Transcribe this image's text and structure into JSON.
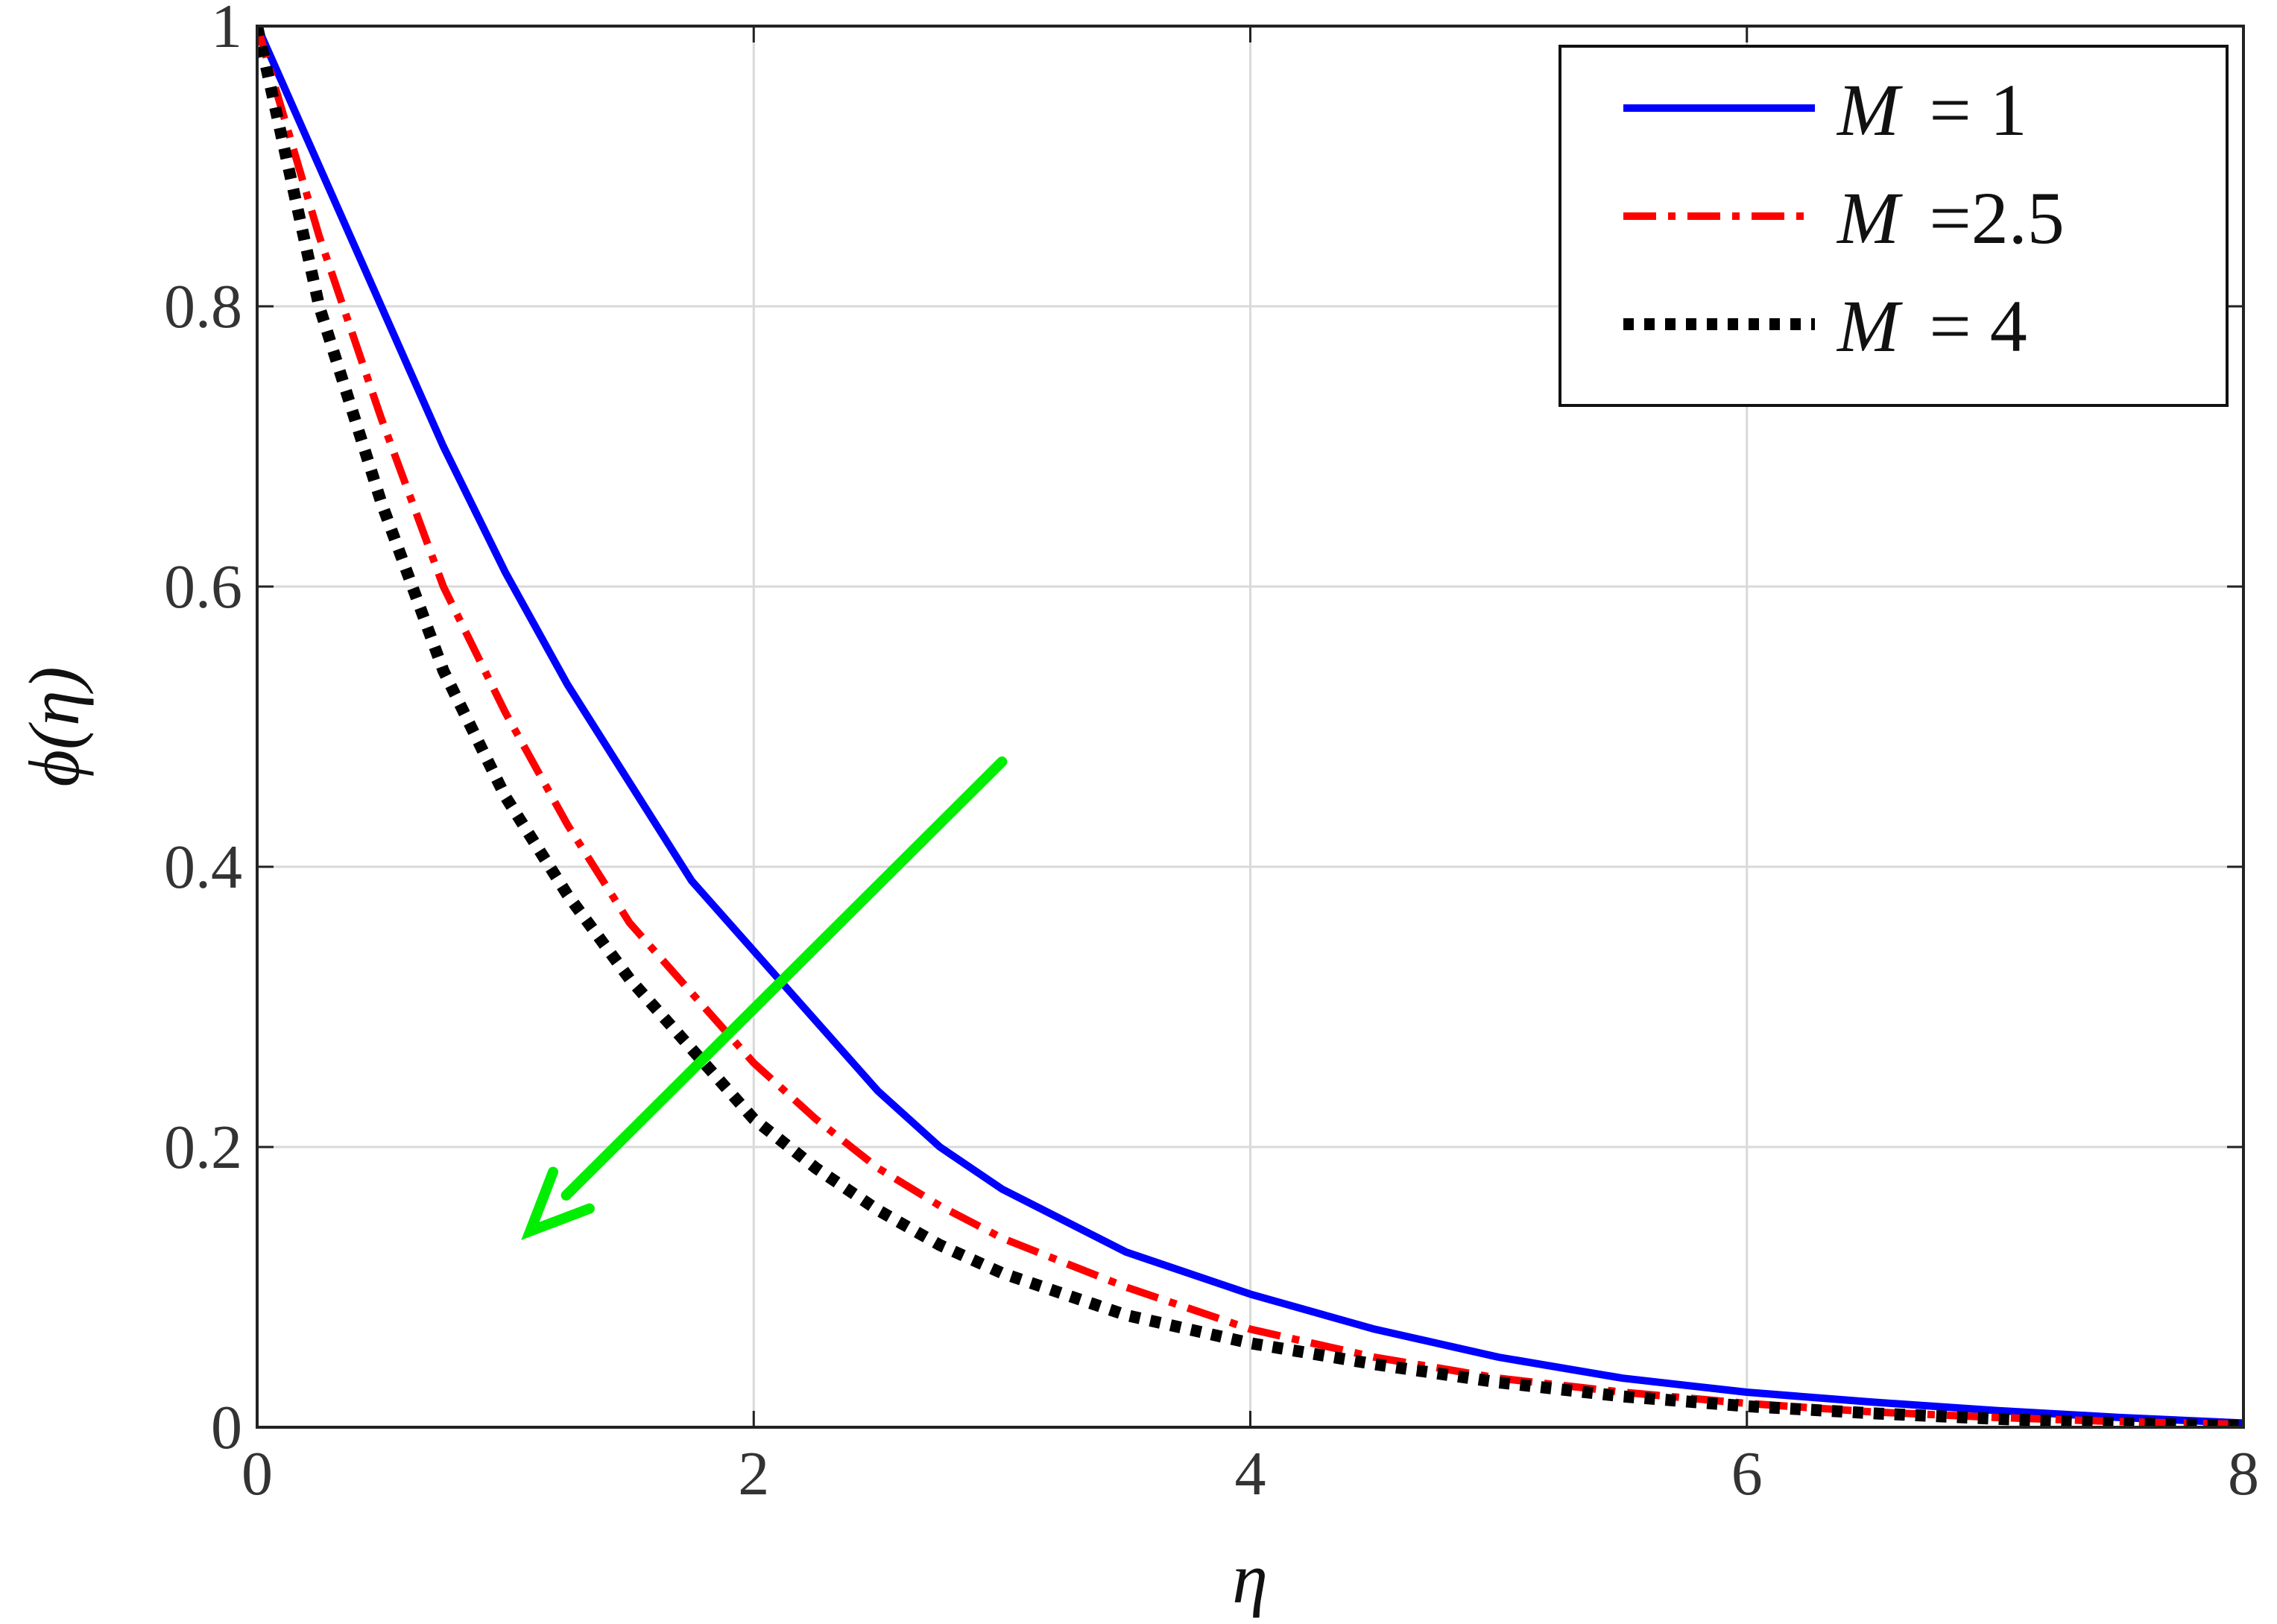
{
  "chart_data": {
    "type": "line",
    "title": "",
    "xlabel": "η",
    "ylabel": "ϕ(η)",
    "xlim": [
      0,
      8
    ],
    "ylim": [
      0,
      1
    ],
    "xticks": [
      0,
      2,
      4,
      6,
      8
    ],
    "yticks": [
      0,
      0.2,
      0.4,
      0.6,
      0.8,
      1
    ],
    "xtick_labels": [
      "0",
      "2",
      "4",
      "6",
      "8"
    ],
    "ytick_labels": [
      "0",
      "0.2",
      "0.4",
      "0.6",
      "0.8",
      "1"
    ],
    "grid": true,
    "legend_position": "top-right",
    "x": [
      0,
      0.25,
      0.5,
      0.75,
      1,
      1.25,
      1.5,
      1.75,
      2,
      2.25,
      2.5,
      2.75,
      3,
      3.5,
      4,
      4.5,
      5,
      5.5,
      6,
      6.5,
      7,
      7.5,
      8
    ],
    "series": [
      {
        "legend_symbol": "M",
        "legend_value": "= 1",
        "color": "#0000ff",
        "style": "solid",
        "values": [
          1.0,
          0.9,
          0.8,
          0.7,
          0.61,
          0.53,
          0.46,
          0.39,
          0.34,
          0.29,
          0.24,
          0.2,
          0.17,
          0.125,
          0.095,
          0.07,
          0.05,
          0.035,
          0.025,
          0.018,
          0.012,
          0.007,
          0.003
        ]
      },
      {
        "legend_symbol": "M",
        "legend_value": "=2.5",
        "color": "#ff0000",
        "style": "dashdot",
        "values": [
          1.0,
          0.85,
          0.72,
          0.6,
          0.51,
          0.43,
          0.36,
          0.31,
          0.26,
          0.22,
          0.185,
          0.158,
          0.135,
          0.1,
          0.07,
          0.05,
          0.035,
          0.025,
          0.017,
          0.011,
          0.007,
          0.004,
          0.002
        ]
      },
      {
        "legend_symbol": "M",
        "legend_value": "= 4",
        "color": "#000000",
        "style": "dotted",
        "values": [
          1.0,
          0.8,
          0.66,
          0.54,
          0.45,
          0.38,
          0.32,
          0.27,
          0.22,
          0.185,
          0.155,
          0.13,
          0.11,
          0.08,
          0.06,
          0.045,
          0.032,
          0.022,
          0.015,
          0.01,
          0.006,
          0.003,
          0.001
        ]
      }
    ],
    "annotations": [
      {
        "type": "arrow",
        "color": "#00ee00",
        "from": [
          3.0,
          0.475
        ],
        "to": [
          1.1,
          0.14
        ]
      }
    ]
  }
}
